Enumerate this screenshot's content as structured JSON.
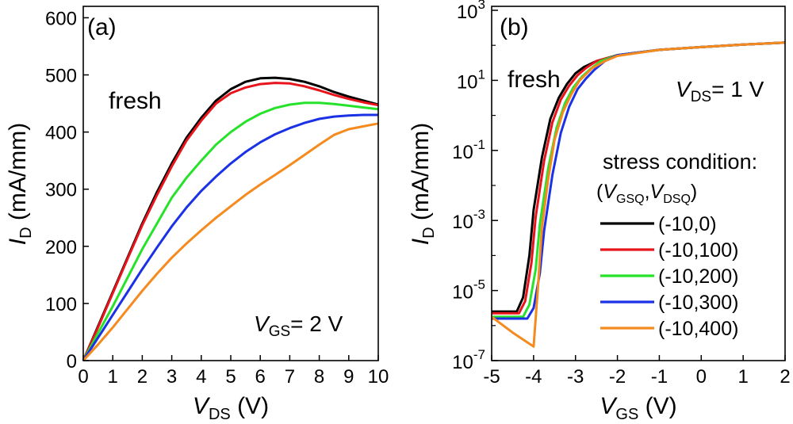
{
  "chart_data": [
    {
      "type": "line",
      "panel_label": "(a)",
      "annotation": "fresh",
      "xlabel": {
        "italic": "V",
        "sub": "DS",
        "rest": " (V)"
      },
      "ylabel": {
        "italic": "I",
        "sub": "D",
        "rest": " (mA/mm)"
      },
      "condition": {
        "italic": "V",
        "sub": "GS",
        "rest": "= 2 V"
      },
      "xlim": [
        0,
        10
      ],
      "ylim": [
        0,
        620
      ],
      "xticks": [
        "0",
        "1",
        "2",
        "3",
        "4",
        "5",
        "6",
        "7",
        "8",
        "9",
        "10"
      ],
      "yticks": [
        "0",
        "100",
        "200",
        "300",
        "400",
        "500",
        "600"
      ],
      "series": [
        {
          "name": "(-10,0)",
          "color": "#000000",
          "x": [
            0,
            0.5,
            1,
            1.5,
            2,
            2.5,
            3,
            3.5,
            4,
            4.5,
            5,
            5.5,
            6,
            6.5,
            7,
            7.5,
            8,
            8.5,
            9,
            9.5,
            10
          ],
          "values": [
            0,
            60,
            120,
            180,
            240,
            295,
            345,
            390,
            425,
            455,
            475,
            488,
            494,
            495,
            493,
            488,
            480,
            470,
            462,
            455,
            448
          ]
        },
        {
          "name": "(-10,100)",
          "color": "#e8141b",
          "x": [
            0,
            0.5,
            1,
            1.5,
            2,
            2.5,
            3,
            3.5,
            4,
            4.5,
            5,
            5.5,
            6,
            6.5,
            7,
            7.5,
            8,
            8.5,
            9,
            9.5,
            10
          ],
          "values": [
            0,
            58,
            118,
            178,
            237,
            290,
            340,
            385,
            420,
            450,
            468,
            478,
            484,
            486,
            485,
            480,
            473,
            465,
            458,
            452,
            447
          ]
        },
        {
          "name": "(-10,200)",
          "color": "#27e22a",
          "x": [
            0,
            0.5,
            1,
            1.5,
            2,
            2.5,
            3,
            3.5,
            4,
            4.5,
            5,
            5.5,
            6,
            6.5,
            7,
            7.5,
            8,
            8.5,
            9,
            9.5,
            10
          ],
          "values": [
            0,
            48,
            95,
            145,
            195,
            240,
            285,
            320,
            350,
            378,
            400,
            418,
            432,
            442,
            448,
            451,
            451,
            449,
            446,
            443,
            440
          ]
        },
        {
          "name": "(-10,300)",
          "color": "#1a31e6",
          "x": [
            0,
            0.5,
            1,
            1.5,
            2,
            2.5,
            3,
            3.5,
            4,
            4.5,
            5,
            5.5,
            6,
            6.5,
            7,
            7.5,
            8,
            8.5,
            9,
            9.5,
            10
          ],
          "values": [
            0,
            40,
            80,
            120,
            160,
            198,
            235,
            268,
            297,
            322,
            345,
            365,
            382,
            396,
            407,
            416,
            423,
            427,
            429,
            430,
            430
          ]
        },
        {
          "name": "(-10,400)",
          "color": "#f58a1f",
          "x": [
            0,
            0.5,
            1,
            1.5,
            2,
            2.5,
            3,
            3.5,
            4,
            4.5,
            5,
            5.5,
            6,
            6.5,
            7,
            7.5,
            8,
            8.5,
            9,
            9.5,
            10
          ],
          "values": [
            0,
            28,
            58,
            90,
            122,
            152,
            180,
            205,
            228,
            250,
            270,
            290,
            308,
            325,
            342,
            360,
            378,
            395,
            405,
            410,
            415
          ]
        }
      ]
    },
    {
      "type": "line",
      "yscale": "log",
      "panel_label": "(b)",
      "annotation": "fresh",
      "xlabel": {
        "italic": "V",
        "sub": "GS",
        "rest": " (V)"
      },
      "ylabel": {
        "italic": "I",
        "sub": "D",
        "rest": " (mA/mm)"
      },
      "condition": {
        "italic": "V",
        "sub": "DS",
        "rest": "= 1 V"
      },
      "xlim": [
        -5,
        2
      ],
      "ylim_exp": [
        -7,
        3
      ],
      "xticks": [
        "-5",
        "-4",
        "-3",
        "-2",
        "-1",
        "0",
        "1",
        "2"
      ],
      "yticks": [
        {
          "base": "10",
          "exp": "-7"
        },
        {
          "base": "10",
          "exp": "-5"
        },
        {
          "base": "10",
          "exp": "-3"
        },
        {
          "base": "10",
          "exp": "-1"
        },
        {
          "base": "10",
          "exp": "1"
        },
        {
          "base": "10",
          "exp": "3"
        }
      ],
      "legend_title": "stress condition:",
      "legend_subtitle": {
        "open": "(",
        "v1": "V",
        "s1": "GSQ",
        "comma": ",",
        "v2": "V",
        "s2": "DSQ",
        "close": ")"
      },
      "series": [
        {
          "name": "(-10,0)",
          "color": "#000000",
          "x": [
            -5,
            -4.4,
            -4.25,
            -4.1,
            -4,
            -3.8,
            -3.6,
            -3.4,
            -3.2,
            -3,
            -2.8,
            -2.5,
            -2,
            -1,
            0,
            1,
            2
          ],
          "log10_values": [
            -5.6,
            -5.6,
            -5.2,
            -4,
            -2.7,
            -1.2,
            -0.1,
            0.5,
            0.9,
            1.2,
            1.38,
            1.55,
            1.72,
            1.87,
            1.95,
            2.02,
            2.08
          ]
        },
        {
          "name": "(-10,100)",
          "color": "#e8141b",
          "x": [
            -5,
            -4.35,
            -4.2,
            -4.05,
            -3.95,
            -3.75,
            -3.55,
            -3.35,
            -3.15,
            -2.95,
            -2.75,
            -2.5,
            -2,
            -1,
            0,
            1,
            2
          ],
          "log10_values": [
            -5.65,
            -5.65,
            -5.3,
            -4.2,
            -2.9,
            -1.3,
            -0.2,
            0.45,
            0.85,
            1.15,
            1.35,
            1.55,
            1.72,
            1.87,
            1.95,
            2.02,
            2.08
          ]
        },
        {
          "name": "(-10,200)",
          "color": "#27e22a",
          "x": [
            -5,
            -4.25,
            -4.1,
            -3.95,
            -3.85,
            -3.65,
            -3.45,
            -3.25,
            -3.05,
            -2.85,
            -2.65,
            -2.4,
            -2,
            -1,
            0,
            1,
            2
          ],
          "log10_values": [
            -5.75,
            -5.75,
            -5.4,
            -4.4,
            -3.1,
            -1.5,
            -0.35,
            0.35,
            0.8,
            1.1,
            1.32,
            1.55,
            1.72,
            1.87,
            1.95,
            2.02,
            2.08
          ]
        },
        {
          "name": "(-10,300)",
          "color": "#1a31e6",
          "x": [
            -5,
            -4.15,
            -4,
            -3.85,
            -3.75,
            -3.55,
            -3.35,
            -3.15,
            -2.95,
            -2.75,
            -2.55,
            -2.3,
            -2,
            -1,
            0,
            1,
            2
          ],
          "log10_values": [
            -5.8,
            -5.8,
            -5.5,
            -4.5,
            -3.3,
            -1.7,
            -0.5,
            0.25,
            0.75,
            1.05,
            1.3,
            1.55,
            1.72,
            1.87,
            1.95,
            2.02,
            2.08
          ]
        },
        {
          "name": "(-10,400)",
          "color": "#f58a1f",
          "x": [
            -5,
            -4.5,
            -4,
            -3.9,
            -3.8,
            -3.65,
            -3.5,
            -3.3,
            -3.1,
            -2.9,
            -2.6,
            -2.3,
            -2,
            -1,
            0,
            1,
            2
          ],
          "log10_values": [
            -5.75,
            -6.2,
            -6.6,
            -5,
            -3.2,
            -1.8,
            -0.7,
            0.1,
            0.6,
            1,
            1.35,
            1.55,
            1.7,
            1.87,
            1.95,
            2.02,
            2.08
          ]
        }
      ]
    }
  ]
}
